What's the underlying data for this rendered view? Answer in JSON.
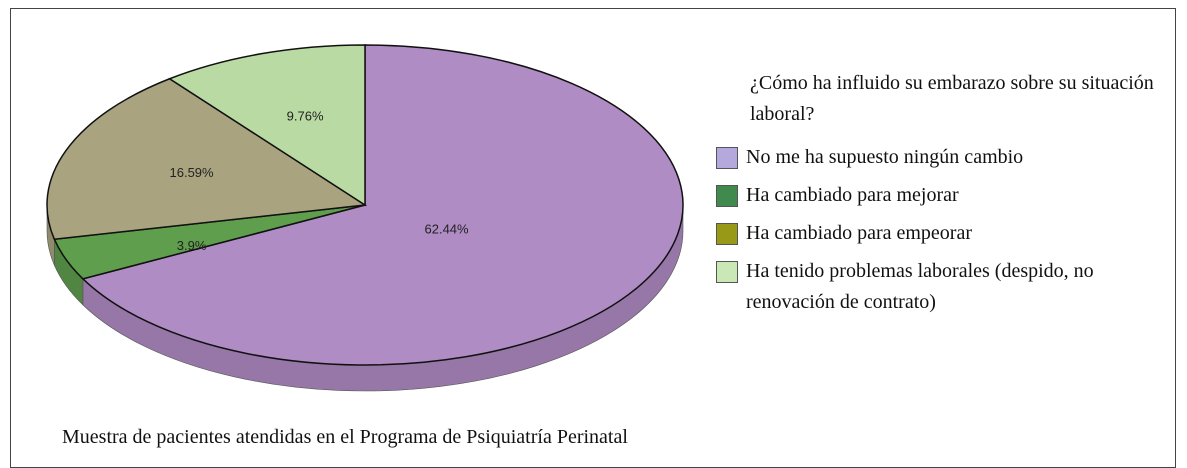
{
  "chart_data": {
    "type": "pie",
    "title": "¿Cómo ha influido su embarazo sobre su situación laboral?",
    "note": "Muestra de pacientes atendidas en el Programa de Psiquiatría Perinatal",
    "categories": [
      "No me ha supuesto ningún cambio",
      "Ha cambiado para mejorar",
      "Ha cambiado para empeorar",
      "Ha tenido problemas laborales (despido, no renovación de contrato)"
    ],
    "values": [
      62.44,
      3.9,
      16.59,
      9.76
    ],
    "value_labels": [
      "62.44%",
      "3.9%",
      "16.59%",
      "9.76%"
    ],
    "colors": [
      "#b08cc4",
      "#5e9e4c",
      "#a9a47f",
      "#b9dba3"
    ],
    "legend_colors": [
      "#b4a8dc",
      "#3f8a4c",
      "#999918",
      "#c9e8b5"
    ]
  }
}
